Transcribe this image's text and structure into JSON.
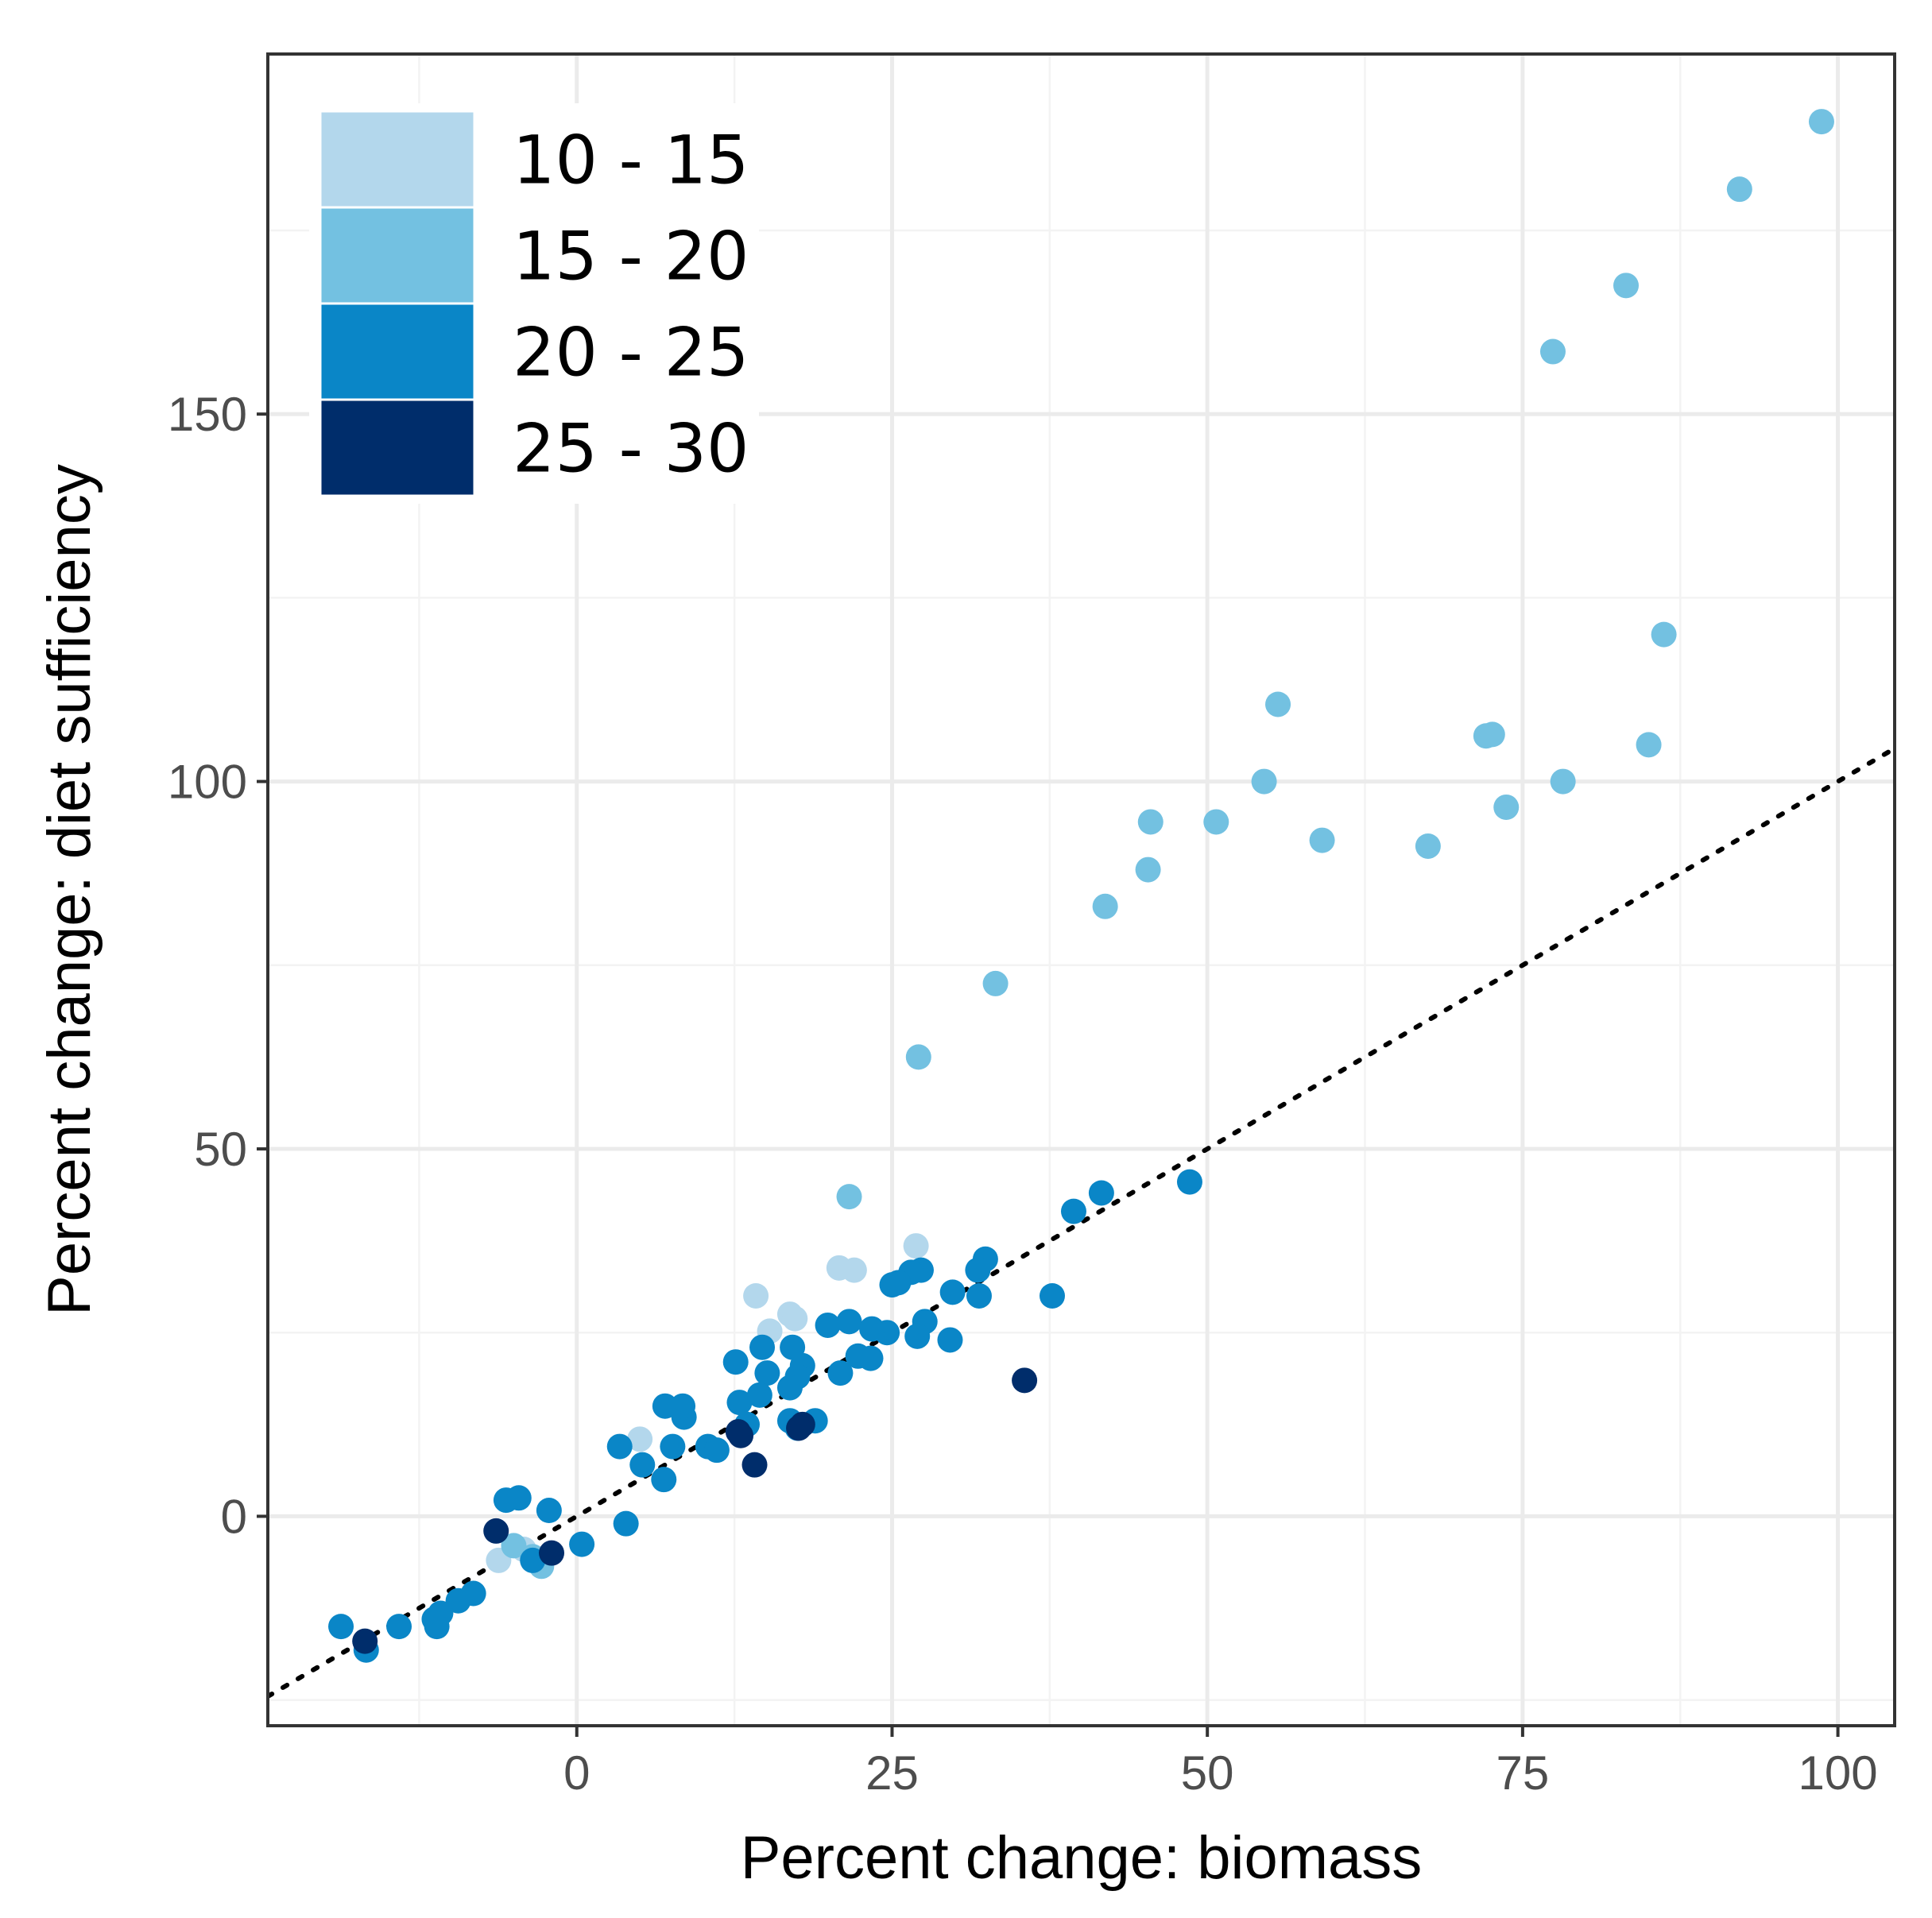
{
  "chart_data": {
    "type": "scatter",
    "title": "",
    "xlabel": "Percent change: biomass",
    "ylabel": "Percent change: diet sufficiency",
    "xlim": [
      -24.5,
      104.5
    ],
    "ylim": [
      -28.5,
      199
    ],
    "x_ticks": [
      0,
      25,
      50,
      75,
      100
    ],
    "x_tick_labels": [
      "0",
      "25",
      "50",
      "75",
      "100"
    ],
    "y_ticks": [
      0,
      50,
      100,
      150
    ],
    "y_tick_labels": [
      "0",
      "50",
      "100",
      "150"
    ],
    "grid": true,
    "legend": {
      "placement": "top-left",
      "entries": [
        {
          "label": "10 - 15",
          "color": "#b3d7ec"
        },
        {
          "label": "15 - 20",
          "color": "#73c1e1"
        },
        {
          "label": "20 - 25",
          "color": "#0a86c7"
        },
        {
          "label": "25 - 30",
          "color": "#002d6b"
        }
      ]
    },
    "reference_line": {
      "style": "dotted",
      "slope": 1,
      "intercept": 0,
      "color": "#000000"
    },
    "series": [
      {
        "name": "10 - 15",
        "color": "#b3d7ec",
        "points": [
          [
            14.2,
            30.0
          ],
          [
            16.9,
            27.5
          ],
          [
            15.3,
            25.2
          ],
          [
            17.3,
            26.9
          ],
          [
            20.8,
            33.8
          ],
          [
            22.0,
            33.5
          ],
          [
            26.9,
            36.8
          ],
          [
            5.0,
            10.5
          ],
          [
            -6.2,
            -6.0
          ],
          [
            -4.2,
            -4.5
          ]
        ]
      },
      {
        "name": "15 - 20",
        "color": "#73c1e1",
        "points": [
          [
            98.7,
            189.8
          ],
          [
            92.2,
            180.6
          ],
          [
            83.2,
            167.5
          ],
          [
            77.4,
            158.5
          ],
          [
            86.2,
            120.0
          ],
          [
            55.6,
            110.5
          ],
          [
            72.1,
            106.2
          ],
          [
            72.6,
            106.4
          ],
          [
            85.0,
            105.0
          ],
          [
            54.5,
            100.0
          ],
          [
            78.2,
            100.0
          ],
          [
            45.5,
            94.5
          ],
          [
            50.7,
            94.5
          ],
          [
            73.7,
            96.5
          ],
          [
            59.1,
            92.0
          ],
          [
            67.5,
            91.2
          ],
          [
            45.3,
            88.0
          ],
          [
            41.9,
            83.0
          ],
          [
            33.2,
            72.5
          ],
          [
            27.1,
            62.5
          ],
          [
            21.6,
            43.5
          ],
          [
            -3.5,
            -5.5
          ],
          [
            -2.8,
            -6.8
          ],
          [
            -5.0,
            -4.0
          ]
        ]
      },
      {
        "name": "20 - 25",
        "color": "#0a86c7",
        "points": [
          [
            48.6,
            45.5
          ],
          [
            41.6,
            44.0
          ],
          [
            39.4,
            41.5
          ],
          [
            37.7,
            30.0
          ],
          [
            32.4,
            35.0
          ],
          [
            31.8,
            33.5
          ],
          [
            31.9,
            30.0
          ],
          [
            29.8,
            30.5
          ],
          [
            27.3,
            33.5
          ],
          [
            26.5,
            33.2
          ],
          [
            25.5,
            31.8
          ],
          [
            25.0,
            31.5
          ],
          [
            27.6,
            26.5
          ],
          [
            27.0,
            24.5
          ],
          [
            24.6,
            25.0
          ],
          [
            23.4,
            25.5
          ],
          [
            21.6,
            26.5
          ],
          [
            19.9,
            26.0
          ],
          [
            23.3,
            21.5
          ],
          [
            22.3,
            21.8
          ],
          [
            20.9,
            19.5
          ],
          [
            17.9,
            20.5
          ],
          [
            17.5,
            19.0
          ],
          [
            17.1,
            23.0
          ],
          [
            15.1,
            19.5
          ],
          [
            14.7,
            23.0
          ],
          [
            16.9,
            17.5
          ],
          [
            12.6,
            21.0
          ],
          [
            12.9,
            15.5
          ],
          [
            14.5,
            16.5
          ],
          [
            13.5,
            12.5
          ],
          [
            16.9,
            13.0
          ],
          [
            17.5,
            12.0
          ],
          [
            18.9,
            13.0
          ],
          [
            29.6,
            24.0
          ],
          [
            8.5,
            13.5
          ],
          [
            7.0,
            15.0
          ],
          [
            8.4,
            15.0
          ],
          [
            7.6,
            9.5
          ],
          [
            10.4,
            9.5
          ],
          [
            11.1,
            9.0
          ],
          [
            5.2,
            7.0
          ],
          [
            6.9,
            5.0
          ],
          [
            3.4,
            9.5
          ],
          [
            3.9,
            -1.0
          ],
          [
            0.4,
            -3.8
          ],
          [
            -2.2,
            0.8
          ],
          [
            -5.6,
            2.2
          ],
          [
            -4.6,
            2.5
          ],
          [
            -3.5,
            -6.0
          ],
          [
            -9.4,
            -11.5
          ],
          [
            -10.8,
            -13.2
          ],
          [
            -11.1,
            -15.0
          ],
          [
            -11.3,
            -14.0
          ],
          [
            -8.2,
            -10.5
          ],
          [
            -14.1,
            -15.0
          ],
          [
            -18.7,
            -15.0
          ],
          [
            -16.7,
            -18.2
          ]
        ]
      },
      {
        "name": "25 - 30",
        "color": "#002d6b",
        "points": [
          [
            35.5,
            18.5
          ],
          [
            17.9,
            12.5
          ],
          [
            17.6,
            12.0
          ],
          [
            12.8,
            11.5
          ],
          [
            13.0,
            11.0
          ],
          [
            14.1,
            7.0
          ],
          [
            -6.4,
            -2.0
          ],
          [
            -2.0,
            -5.0
          ],
          [
            -16.8,
            -17.0
          ]
        ]
      }
    ]
  }
}
